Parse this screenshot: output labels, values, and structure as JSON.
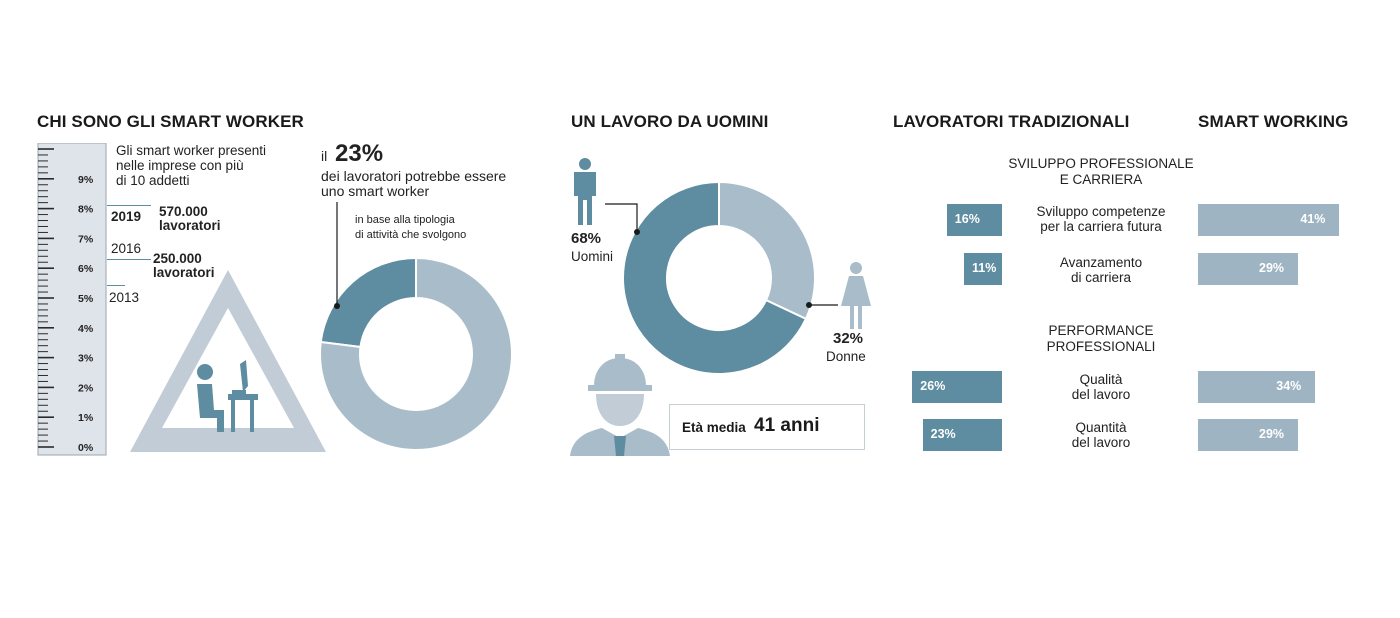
{
  "colors": {
    "dark": "#5e8ca0",
    "light": "#a9bcc9",
    "gauge": "#dfe4ea",
    "text": "#1a1a1a"
  },
  "section1": {
    "title": "CHI SONO GLI SMART WORKER",
    "gauge_desc": [
      "Gli smart worker presenti",
      "nelle imprese con più",
      "di 10 addetti"
    ],
    "y2019": "2019",
    "v2019": "570.000",
    "l2019": "lavoratori",
    "y2016": "2016",
    "v2016": "250.000",
    "l2016": "lavoratori",
    "y2013": "2013",
    "percent_prefix": "il",
    "percent_value": "23%",
    "percent_desc": [
      "dei lavoratori potrebbe essere",
      "uno smart worker"
    ],
    "note": [
      "in base alla tipologia",
      "di attività che svolgono"
    ]
  },
  "section2": {
    "title": "UN LAVORO DA UOMINI",
    "men_value": "68%",
    "men_label": "Uomini",
    "women_value": "32%",
    "women_label": "Donne",
    "age_prefix": "Età media",
    "age_value": "41 anni"
  },
  "section3": {
    "title_left": "LAVORATORI TRADIZIONALI",
    "title_right": "SMART WORKING",
    "group1_title": [
      "SVILUPPO PROFESSIONALE",
      "E CARRIERA"
    ],
    "group2_title": [
      "PERFORMANCE",
      "PROFESSIONALI"
    ],
    "rows": [
      {
        "label": [
          "Sviluppo competenze",
          "per la carriera futura"
        ],
        "left": "16%",
        "right": "41%"
      },
      {
        "label": [
          "Avanzamento",
          "di carriera"
        ],
        "left": "11%",
        "right": "29%"
      },
      {
        "label": [
          "Qualità",
          "del lavoro"
        ],
        "left": "26%",
        "right": "34%"
      },
      {
        "label": [
          "Quantità",
          "del lavoro"
        ],
        "left": "23%",
        "right": "29%"
      }
    ]
  },
  "chart_data": [
    {
      "type": "bar",
      "title": "",
      "categories": [
        "2013",
        "2016",
        "2019"
      ],
      "values": [
        5.4,
        6.2,
        8.0
      ],
      "ylabel": "",
      "ylim": [
        0,
        10
      ],
      "yticks": [
        "0%",
        "1%",
        "2%",
        "3%",
        "4%",
        "5%",
        "6%",
        "7%",
        "8%",
        "9%"
      ]
    },
    {
      "type": "pie",
      "labels": [
        "",
        ""
      ],
      "values": [
        23,
        77
      ]
    },
    {
      "type": "pie",
      "labels": [
        "Uomini",
        "Donne"
      ],
      "values": [
        68,
        32
      ]
    },
    {
      "type": "bar",
      "categories": [
        "Sviluppo competenze per la carriera futura",
        "Avanzamento di carriera",
        "Qualità del lavoro",
        "Quantità del lavoro"
      ],
      "series": [
        {
          "name": "LAVORATORI TRADIZIONALI",
          "values": [
            16,
            11,
            26,
            23
          ]
        },
        {
          "name": "SMART WORKING",
          "values": [
            41,
            29,
            34,
            29
          ]
        }
      ]
    }
  ]
}
